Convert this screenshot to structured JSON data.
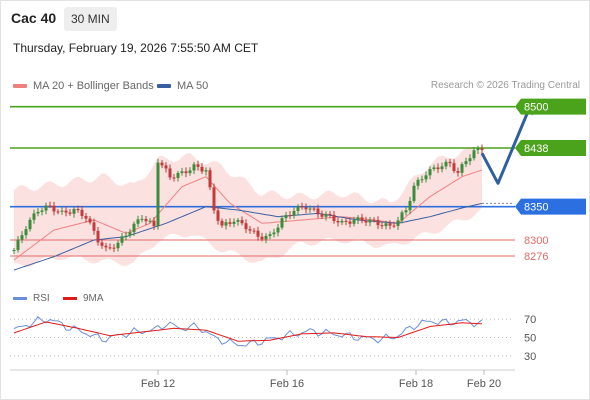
{
  "header": {
    "title": "Cac 40",
    "timeframe": "30 MIN",
    "datetime": "Thursday, February 19, 2026 7:55:50 AM CET"
  },
  "legend": {
    "ma20": "MA 20 + Bollinger Bands",
    "ma50": "MA 50",
    "rsi": "RSI",
    "rsi_ma": "9MA"
  },
  "credit": "Research © 2026 Trading Central",
  "colors": {
    "ma20": "#f08080",
    "ma50": "#3a5fa0",
    "bollinger": "#fcdcdc",
    "bull": "#3c8c3c",
    "bear": "#c23a3a",
    "green_level": "#4aa31a",
    "blue_level": "#2c6fe0",
    "red_level": "#e26a6a",
    "arrow": "#2f5f9e",
    "rsi": "#6b8fd6",
    "rsi_ma": "#e21a1a"
  },
  "chart_data": [
    {
      "type": "line",
      "name": "price",
      "ylim": [
        8255,
        8525
      ],
      "x_ticks": [
        "Feb 12",
        "Feb 16",
        "Feb 18",
        "Feb 20"
      ],
      "levels": [
        {
          "value": 8500,
          "label": "8500",
          "kind": "resistance",
          "color": "#4aa31a",
          "style": "tag"
        },
        {
          "value": 8438,
          "label": "8438",
          "kind": "resistance",
          "color": "#4aa31a",
          "style": "tag"
        },
        {
          "value": 8350,
          "label": "8350",
          "kind": "pivot",
          "color": "#2c6fe0",
          "style": "tag"
        },
        {
          "value": 8300,
          "label": "8300",
          "kind": "support",
          "color": "#e26a6a",
          "style": "text"
        },
        {
          "value": 8276,
          "label": "8276",
          "kind": "support",
          "color": "#e26a6a",
          "style": "text"
        }
      ],
      "price_anchors": [
        [
          0,
          8285
        ],
        [
          3,
          8320
        ],
        [
          6,
          8345
        ],
        [
          9,
          8350
        ],
        [
          12,
          8340
        ],
        [
          15,
          8345
        ],
        [
          18,
          8335
        ],
        [
          21,
          8300
        ],
        [
          23,
          8285
        ],
        [
          26,
          8295
        ],
        [
          29,
          8315
        ],
        [
          32,
          8335
        ],
        [
          35,
          8320
        ],
        [
          36,
          8420
        ],
        [
          39,
          8395
        ],
        [
          42,
          8400
        ],
        [
          45,
          8410
        ],
        [
          48,
          8405
        ],
        [
          50,
          8345
        ],
        [
          52,
          8320
        ],
        [
          55,
          8330
        ],
        [
          58,
          8320
        ],
        [
          61,
          8305
        ],
        [
          64,
          8305
        ],
        [
          67,
          8330
        ],
        [
          70,
          8345
        ],
        [
          73,
          8350
        ],
        [
          76,
          8340
        ],
        [
          79,
          8335
        ],
        [
          82,
          8325
        ],
        [
          85,
          8330
        ],
        [
          88,
          8330
        ],
        [
          91,
          8325
        ],
        [
          94,
          8320
        ],
        [
          96,
          8330
        ],
        [
          98,
          8345
        ],
        [
          100,
          8380
        ],
        [
          103,
          8400
        ],
        [
          106,
          8410
        ],
        [
          109,
          8415
        ],
        [
          111,
          8400
        ],
        [
          113,
          8420
        ],
        [
          115,
          8432
        ],
        [
          117,
          8438
        ]
      ],
      "ma20_anchors": [
        [
          0,
          8270
        ],
        [
          10,
          8315
        ],
        [
          20,
          8330
        ],
        [
          28,
          8310
        ],
        [
          34,
          8325
        ],
        [
          42,
          8380
        ],
        [
          48,
          8395
        ],
        [
          54,
          8355
        ],
        [
          62,
          8325
        ],
        [
          72,
          8330
        ],
        [
          82,
          8335
        ],
        [
          90,
          8330
        ],
        [
          96,
          8325
        ],
        [
          104,
          8365
        ],
        [
          112,
          8395
        ],
        [
          117,
          8405
        ]
      ],
      "ma50_anchors": [
        [
          0,
          8255
        ],
        [
          10,
          8275
        ],
        [
          20,
          8300
        ],
        [
          28,
          8305
        ],
        [
          38,
          8325
        ],
        [
          48,
          8350
        ],
        [
          56,
          8345
        ],
        [
          66,
          8335
        ],
        [
          76,
          8340
        ],
        [
          86,
          8330
        ],
        [
          96,
          8325
        ],
        [
          104,
          8335
        ],
        [
          112,
          8348
        ],
        [
          117,
          8355
        ]
      ],
      "bb_upper_anchors": [
        [
          0,
          8375
        ],
        [
          12,
          8385
        ],
        [
          22,
          8395
        ],
        [
          30,
          8380
        ],
        [
          36,
          8420
        ],
        [
          44,
          8425
        ],
        [
          52,
          8410
        ],
        [
          62,
          8370
        ],
        [
          72,
          8365
        ],
        [
          82,
          8370
        ],
        [
          94,
          8355
        ],
        [
          104,
          8415
        ],
        [
          112,
          8432
        ],
        [
          117,
          8438
        ]
      ],
      "bb_lower_anchors": [
        [
          0,
          8260
        ],
        [
          12,
          8275
        ],
        [
          22,
          8268
        ],
        [
          30,
          8265
        ],
        [
          36,
          8300
        ],
        [
          44,
          8310
        ],
        [
          52,
          8285
        ],
        [
          62,
          8265
        ],
        [
          72,
          8295
        ],
        [
          82,
          8300
        ],
        [
          94,
          8290
        ],
        [
          104,
          8310
        ],
        [
          112,
          8330
        ],
        [
          117,
          8345
        ]
      ],
      "projection": [
        [
          117,
          8430
        ],
        [
          121,
          8385
        ],
        [
          129,
          8500
        ]
      ]
    },
    {
      "type": "line",
      "name": "RSI",
      "ylim": [
        20,
        80
      ],
      "y_ticks": [
        70,
        50,
        30
      ],
      "rsi_anchors": [
        [
          0,
          58
        ],
        [
          5,
          67
        ],
        [
          9,
          70
        ],
        [
          13,
          62
        ],
        [
          18,
          55
        ],
        [
          22,
          48
        ],
        [
          26,
          52
        ],
        [
          30,
          56
        ],
        [
          35,
          58
        ],
        [
          38,
          65
        ],
        [
          42,
          60
        ],
        [
          46,
          62
        ],
        [
          50,
          50
        ],
        [
          54,
          44
        ],
        [
          58,
          42
        ],
        [
          62,
          46
        ],
        [
          68,
          52
        ],
        [
          74,
          57
        ],
        [
          80,
          54
        ],
        [
          86,
          50
        ],
        [
          92,
          48
        ],
        [
          96,
          52
        ],
        [
          100,
          63
        ],
        [
          104,
          68
        ],
        [
          108,
          66
        ],
        [
          112,
          68
        ],
        [
          117,
          65
        ]
      ],
      "rsi_ma_anchors": [
        [
          0,
          55
        ],
        [
          8,
          67
        ],
        [
          16,
          60
        ],
        [
          24,
          52
        ],
        [
          32,
          56
        ],
        [
          40,
          60
        ],
        [
          48,
          58
        ],
        [
          56,
          46
        ],
        [
          64,
          47
        ],
        [
          72,
          54
        ],
        [
          80,
          55
        ],
        [
          88,
          51
        ],
        [
          96,
          50
        ],
        [
          104,
          62
        ],
        [
          112,
          66
        ],
        [
          117,
          65
        ]
      ]
    }
  ]
}
